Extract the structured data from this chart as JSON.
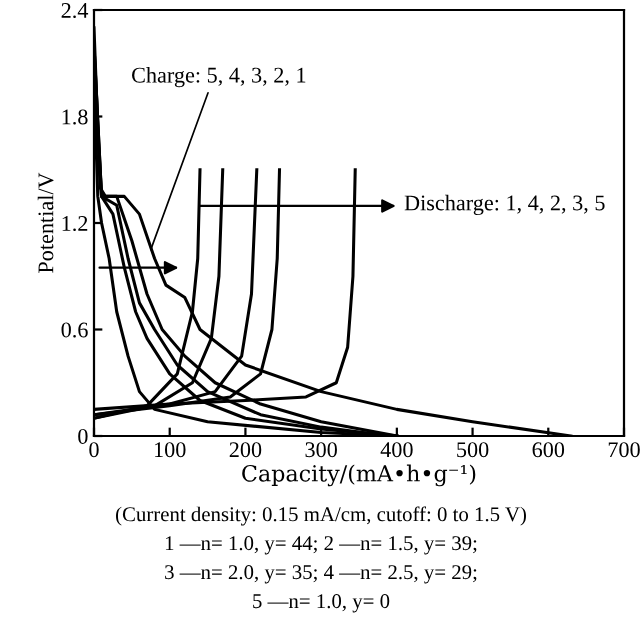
{
  "chart_data": {
    "type": "line",
    "xlabel": "Capacity/(mA•h•g⁻¹)",
    "ylabel": "Potential/V",
    "xlim": [
      0,
      700
    ],
    "ylim": [
      0,
      2.4
    ],
    "xticks": [
      0,
      100,
      200,
      300,
      400,
      500,
      600,
      700
    ],
    "yticks": [
      0,
      0.6,
      1.2,
      1.8,
      2.4
    ],
    "grid": false,
    "legend": false,
    "marker": "none",
    "line_style": "solid",
    "series": [
      {
        "color": "#000000",
        "x": [
          0,
          8,
          15,
          40,
          60,
          80,
          95,
          120,
          140,
          200,
          300,
          400,
          500,
          630
        ],
        "values": [
          2.3,
          1.4,
          1.35,
          1.35,
          1.25,
          1.0,
          0.85,
          0.78,
          0.6,
          0.4,
          0.25,
          0.15,
          0.08,
          0
        ]
      },
      {
        "color": "#000000",
        "x": [
          0,
          10,
          30,
          50,
          70,
          90,
          120,
          160,
          220,
          300,
          400
        ],
        "values": [
          2.2,
          1.35,
          1.35,
          1.1,
          0.8,
          0.6,
          0.45,
          0.3,
          0.18,
          0.08,
          0
        ]
      },
      {
        "color": "#000000",
        "x": [
          0,
          10,
          30,
          45,
          60,
          80,
          110,
          150,
          220,
          300,
          390
        ],
        "values": [
          2.2,
          1.35,
          1.3,
          1.0,
          0.75,
          0.6,
          0.4,
          0.25,
          0.12,
          0.05,
          0
        ]
      },
      {
        "color": "#000000",
        "x": [
          0,
          10,
          25,
          40,
          55,
          70,
          100,
          140,
          200,
          300,
          400
        ],
        "values": [
          2.1,
          1.35,
          1.25,
          0.95,
          0.7,
          0.55,
          0.35,
          0.2,
          0.1,
          0.04,
          0
        ]
      },
      {
        "color": "#000000",
        "x": [
          0,
          5,
          10,
          20,
          30,
          45,
          60,
          80,
          150,
          300,
          400
        ],
        "values": [
          2.0,
          1.35,
          1.2,
          1.0,
          0.7,
          0.45,
          0.25,
          0.15,
          0.08,
          0.02,
          0
        ]
      },
      {
        "color": "#000000",
        "x": [
          0,
          100,
          200,
          280,
          320,
          335,
          342,
          345
        ],
        "values": [
          0.15,
          0.18,
          0.2,
          0.22,
          0.3,
          0.5,
          0.9,
          1.5
        ]
      },
      {
        "color": "#000000",
        "x": [
          0,
          100,
          180,
          220,
          235,
          242,
          245
        ],
        "values": [
          0.12,
          0.17,
          0.22,
          0.35,
          0.6,
          1.0,
          1.5
        ]
      },
      {
        "color": "#000000",
        "x": [
          0,
          100,
          160,
          195,
          208,
          215
        ],
        "values": [
          0.12,
          0.18,
          0.25,
          0.45,
          0.8,
          1.5
        ]
      },
      {
        "color": "#000000",
        "x": [
          0,
          80,
          130,
          155,
          165,
          170
        ],
        "values": [
          0.1,
          0.17,
          0.3,
          0.55,
          0.9,
          1.5
        ]
      },
      {
        "color": "#000000",
        "x": [
          0,
          70,
          110,
          130,
          137,
          140
        ],
        "values": [
          0.1,
          0.17,
          0.35,
          0.7,
          1.0,
          1.5
        ]
      }
    ],
    "annotations": [
      {
        "text": "Charge: 5, 4, 3, 2, 1",
        "x": 75,
        "y": 1.05
      },
      "Discharge: 1, 4, 2, 3, 5",
      "(Current density: 0.15 mA/cm, cutoff: 0 to 1.5 V)",
      "1 —n= 1.0, y= 44; 2 —n= 1.5, y= 39;",
      "3 —n= 2.0, y= 35; 4 —n= 2.5, y= 29;",
      "5 —n= 1.0, y= 0"
    ]
  }
}
